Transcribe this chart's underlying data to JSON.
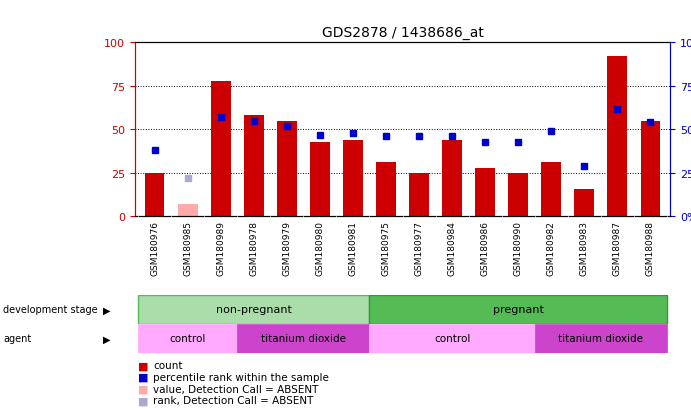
{
  "title": "GDS2878 / 1438686_at",
  "samples": [
    "GSM180976",
    "GSM180985",
    "GSM180989",
    "GSM180978",
    "GSM180979",
    "GSM180980",
    "GSM180981",
    "GSM180975",
    "GSM180977",
    "GSM180984",
    "GSM180986",
    "GSM180990",
    "GSM180982",
    "GSM180983",
    "GSM180987",
    "GSM180988"
  ],
  "count_values": [
    25,
    null,
    78,
    58,
    55,
    43,
    44,
    31,
    25,
    44,
    28,
    25,
    31,
    16,
    92,
    55
  ],
  "count_absent": [
    null,
    7,
    null,
    null,
    null,
    null,
    null,
    null,
    null,
    null,
    null,
    null,
    null,
    null,
    null,
    null
  ],
  "rank_values": [
    38,
    null,
    57,
    55,
    52,
    47,
    48,
    46,
    46,
    46,
    43,
    43,
    49,
    29,
    62,
    54
  ],
  "rank_absent": [
    null,
    22,
    null,
    null,
    null,
    null,
    null,
    null,
    null,
    null,
    null,
    null,
    null,
    null,
    null,
    null
  ],
  "bar_color": "#cc0000",
  "bar_absent_color": "#ffaaaa",
  "dot_color": "#0000cc",
  "dot_absent_color": "#aaaacc",
  "ylim": [
    0,
    100
  ],
  "yticks": [
    0,
    25,
    50,
    75,
    100
  ],
  "left_ylabel_color": "#cc0000",
  "right_ylabel_color": "#0000cc",
  "sample_bg_color": "#cccccc",
  "non_pregnant_light_color": "#aaddaa",
  "non_pregnant_dark_color": "#55bb55",
  "pregnant_dark_color": "#33aa33",
  "control_color": "#ffaaff",
  "tio2_color": "#cc44cc",
  "legend_items": [
    {
      "symbol_color": "#cc0000",
      "label": "count"
    },
    {
      "symbol_color": "#0000cc",
      "label": "percentile rank within the sample"
    },
    {
      "symbol_color": "#ffaaaa",
      "label": "value, Detection Call = ABSENT"
    },
    {
      "symbol_color": "#aaaacc",
      "label": "rank, Detection Call = ABSENT"
    }
  ]
}
